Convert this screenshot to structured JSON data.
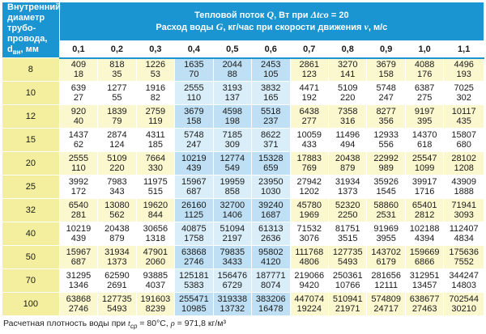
{
  "header": {
    "left_title": "Внутренний диаметр трубо-провода, d",
    "left_sub": "вн",
    "left_unit": ", мм",
    "top_line1_a": "Тепловой поток ",
    "top_line1_q": "Q",
    "top_line1_b": ", Вт при ",
    "top_line1_dt": "Δtco",
    "top_line1_c": " = 20",
    "top_line2_a": "Расход воды ",
    "top_line2_g": "G",
    "top_line2_b": ", кг/час при скорости движения ",
    "top_line2_v": "v",
    "top_line2_c": ", м/с"
  },
  "speeds": [
    "0,1",
    "0,2",
    "0,3",
    "0,4",
    "0,5",
    "0,6",
    "0,7",
    "0,8",
    "0,9",
    "1,0",
    "1,1"
  ],
  "highlight_cols": [
    3,
    4,
    5
  ],
  "rows": [
    {
      "d": "8",
      "q": [
        "409",
        "818",
        "1226",
        "1635",
        "2044",
        "2453",
        "2861",
        "3270",
        "3679",
        "4088",
        "4496"
      ],
      "g": [
        "18",
        "35",
        "53",
        "70",
        "88",
        "105",
        "123",
        "141",
        "158",
        "176",
        "193"
      ]
    },
    {
      "d": "10",
      "q": [
        "639",
        "1277",
        "1916",
        "2555",
        "3193",
        "3832",
        "4471",
        "5109",
        "5748",
        "6387",
        "7025"
      ],
      "g": [
        "27",
        "55",
        "82",
        "110",
        "137",
        "165",
        "192",
        "220",
        "247",
        "275",
        "302"
      ]
    },
    {
      "d": "12",
      "q": [
        "920",
        "1839",
        "2759",
        "3679",
        "4598",
        "5518",
        "6438",
        "7358",
        "8277",
        "9197",
        "10117"
      ],
      "g": [
        "40",
        "79",
        "119",
        "158",
        "198",
        "237",
        "277",
        "316",
        "356",
        "395",
        "435"
      ]
    },
    {
      "d": "15",
      "q": [
        "1437",
        "2874",
        "4311",
        "5748",
        "7185",
        "8622",
        "10059",
        "11496",
        "12933",
        "14370",
        "15807"
      ],
      "g": [
        "62",
        "124",
        "185",
        "247",
        "309",
        "371",
        "433",
        "494",
        "556",
        "618",
        "680"
      ]
    },
    {
      "d": "20",
      "q": [
        "2555",
        "5109",
        "7664",
        "10219",
        "12774",
        "15328",
        "17883",
        "20438",
        "22992",
        "25547",
        "28102"
      ],
      "g": [
        "110",
        "220",
        "330",
        "439",
        "549",
        "659",
        "769",
        "879",
        "989",
        "1099",
        "1208"
      ]
    },
    {
      "d": "25",
      "q": [
        "3992",
        "7983",
        "11975",
        "15967",
        "19959",
        "23950",
        "27942",
        "31934",
        "35926",
        "39917",
        "43909"
      ],
      "g": [
        "172",
        "343",
        "515",
        "687",
        "858",
        "1030",
        "1202",
        "1373",
        "1545",
        "1716",
        "1888"
      ]
    },
    {
      "d": "32",
      "q": [
        "6540",
        "13080",
        "19620",
        "26160",
        "32700",
        "39240",
        "45780",
        "52320",
        "58860",
        "65401",
        "71941"
      ],
      "g": [
        "281",
        "562",
        "844",
        "1125",
        "1406",
        "1687",
        "1969",
        "2250",
        "2531",
        "2812",
        "3093"
      ]
    },
    {
      "d": "40",
      "q": [
        "10219",
        "20438",
        "30656",
        "40875",
        "51094",
        "61313",
        "71532",
        "81751",
        "91969",
        "102188",
        "112407"
      ],
      "g": [
        "439",
        "879",
        "1318",
        "1758",
        "2197",
        "2636",
        "3076",
        "3515",
        "3955",
        "4394",
        "4834"
      ]
    },
    {
      "d": "50",
      "q": [
        "15967",
        "31934",
        "47901",
        "63868",
        "79835",
        "95802",
        "111768",
        "127735",
        "143702",
        "159669",
        "175636"
      ],
      "g": [
        "687",
        "1373",
        "2060",
        "2746",
        "3433",
        "4120",
        "4806",
        "5493",
        "6179",
        "6866",
        "7552"
      ]
    },
    {
      "d": "70",
      "q": [
        "31295",
        "62590",
        "93885",
        "125181",
        "156476",
        "187771",
        "219066",
        "250361",
        "281656",
        "312951",
        "344247"
      ],
      "g": [
        "1346",
        "2691",
        "4037",
        "5383",
        "6729",
        "8074",
        "9420",
        "10766",
        "12111",
        "13457",
        "14803"
      ]
    },
    {
      "d": "100",
      "q": [
        "63868",
        "127735",
        "191603",
        "255471",
        "319338",
        "383206",
        "447074",
        "510941",
        "574809",
        "638677",
        "702544"
      ],
      "g": [
        "2746",
        "5493",
        "8239",
        "10985",
        "13732",
        "16478",
        "19224",
        "21971",
        "24717",
        "27463",
        "30210"
      ]
    }
  ],
  "note": {
    "a": "Расчетная плотность воды при ",
    "t": "t",
    "t_sub": "ср",
    "b": " = 80°С, ",
    "rho": "ρ",
    "c": " = 971,8 кг/м³"
  },
  "colors": {
    "header_blue": "#1b94d2",
    "diameter_yellow": "#f4ef9e",
    "row_yellow": "#fbf8cf",
    "highlight_blue": "#bfe0f4"
  }
}
